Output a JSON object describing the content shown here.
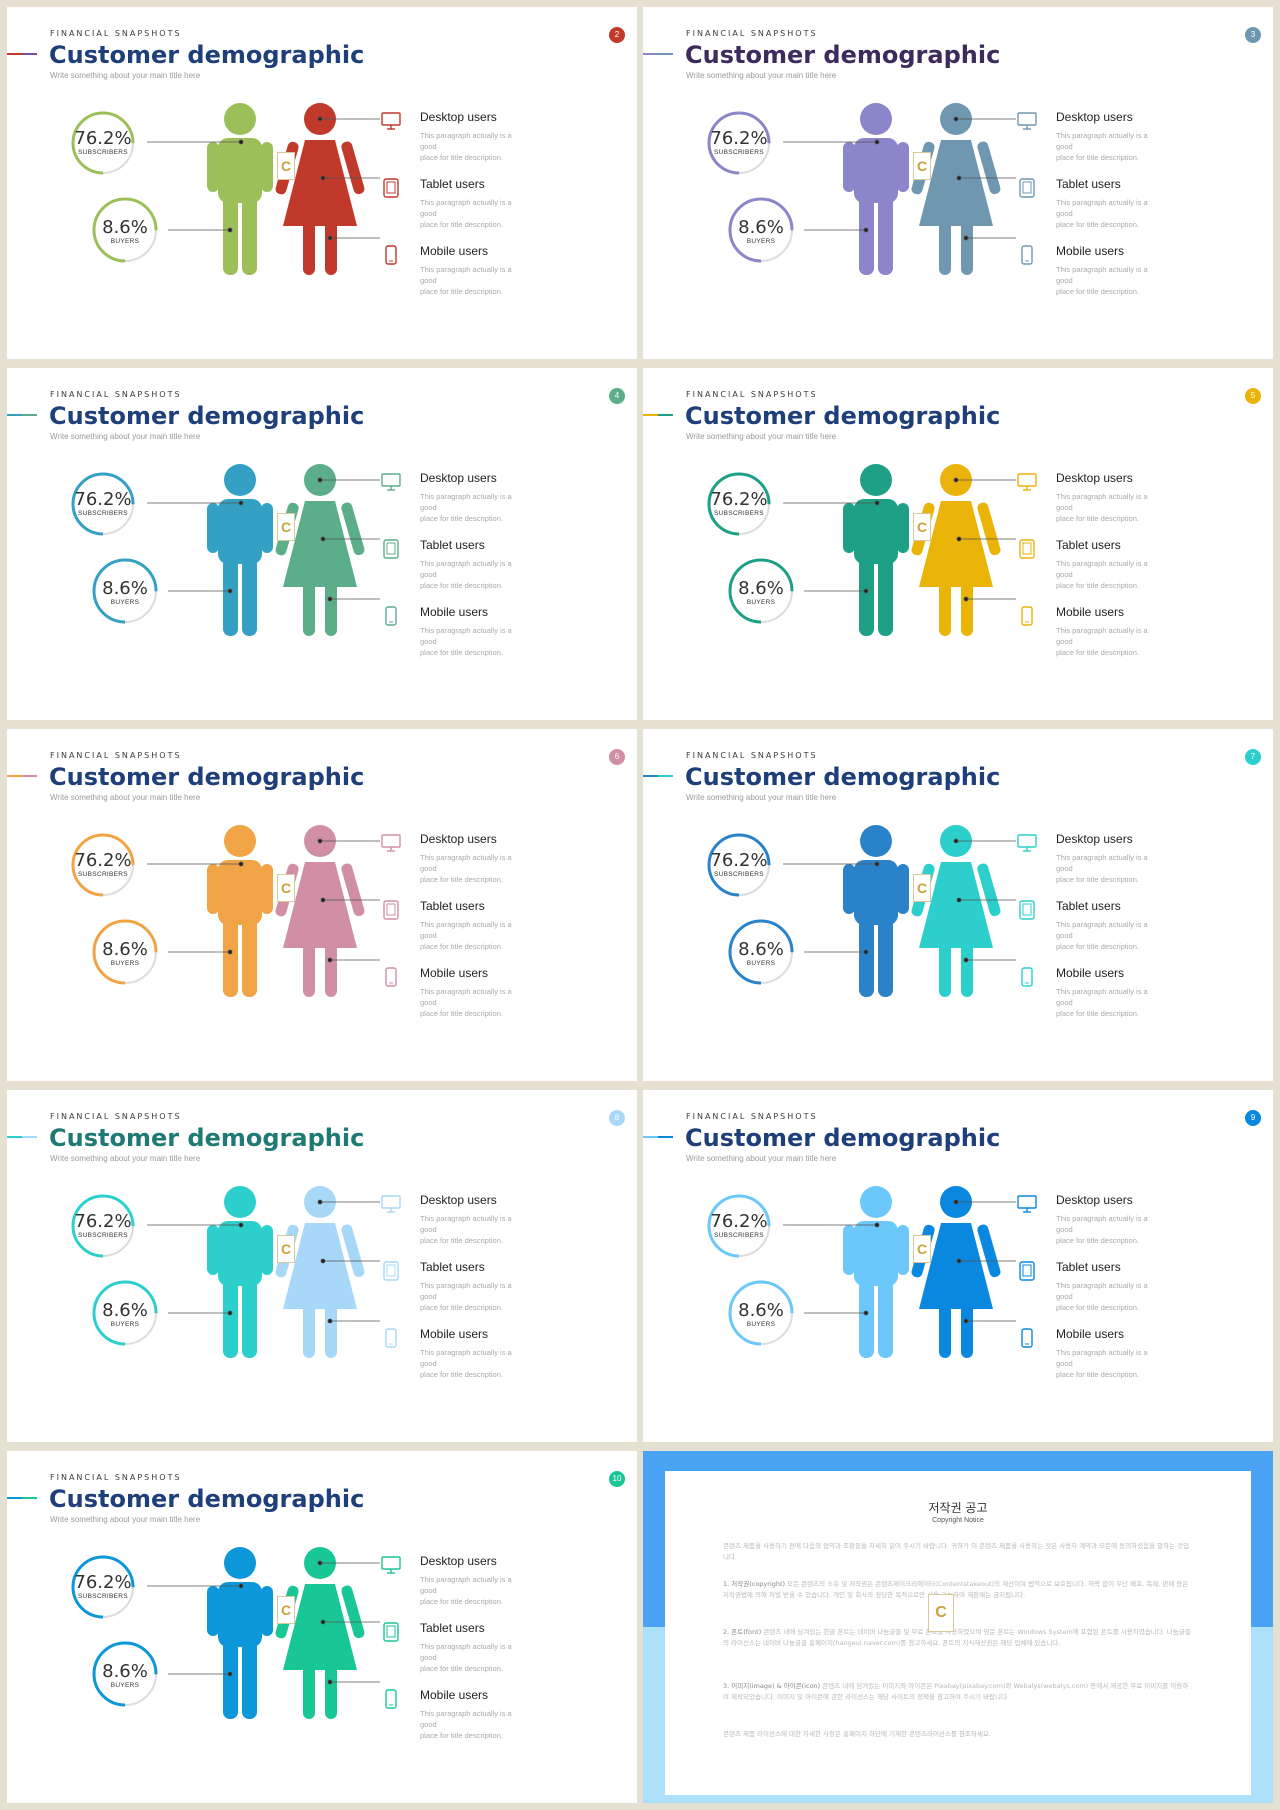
{
  "common": {
    "kicker": "FINANCIAL SNAPSHOTS",
    "title": "Customer demographic",
    "subtitle": "Write something about your main title here",
    "stat1": {
      "value": "76.2%",
      "label": "SUBSCRIBERS"
    },
    "stat2": {
      "value": "8.6%",
      "label": "BUYERS"
    },
    "items": [
      {
        "label": "Desktop users",
        "icon": "monitor-icon",
        "desc1": "This paragraph actually is a good",
        "desc2": "place for title description."
      },
      {
        "label": "Tablet users",
        "icon": "tablet-icon",
        "desc1": "This paragraph actually is a good",
        "desc2": "place for title description."
      },
      {
        "label": "Mobile users",
        "icon": "phone-icon",
        "desc1": "This paragraph actually is a good",
        "desc2": "place for title description."
      }
    ],
    "logo_letter": "C"
  },
  "slides": [
    {
      "number": "2",
      "badge": "#c0392b",
      "accent": [
        "#c0392b",
        "#7b4fa0"
      ],
      "ring": "#9cbf5a",
      "man": "#9cbf5a",
      "woman": "#c0392b",
      "icon": "#c0392b",
      "title_color": "#1f3f7a"
    },
    {
      "number": "3",
      "badge": "#6f98b0",
      "accent": [
        "#8b85c9",
        "#6f98b0"
      ],
      "ring": "#8b85c9",
      "man": "#8b85c9",
      "woman": "#6f98b0",
      "icon": "#6f98b0",
      "title_color": "#3d2b5e"
    },
    {
      "number": "4",
      "badge": "#5cad8a",
      "accent": [
        "#34a0c4",
        "#5cad8a"
      ],
      "ring": "#34a0c4",
      "man": "#34a0c4",
      "woman": "#5cad8a",
      "icon": "#5cad8a",
      "title_color": "#1f3f7a"
    },
    {
      "number": "5",
      "badge": "#eab308",
      "accent": [
        "#eab308",
        "#1ea086"
      ],
      "ring": "#1ea086",
      "man": "#1ea086",
      "woman": "#eab308",
      "icon": "#eab308",
      "title_color": "#1f3f7a"
    },
    {
      "number": "6",
      "badge": "#d08fa5",
      "accent": [
        "#f0a445",
        "#d08fa5"
      ],
      "ring": "#f0a445",
      "man": "#f0a445",
      "woman": "#d08fa5",
      "icon": "#d08fa5",
      "title_color": "#1f3f7a"
    },
    {
      "number": "7",
      "badge": "#2ccfcb",
      "accent": [
        "#2a82c9",
        "#2ccfcb"
      ],
      "ring": "#2a82c9",
      "man": "#2a82c9",
      "woman": "#2ccfcb",
      "icon": "#2ccfcb",
      "title_color": "#1f3f7a"
    },
    {
      "number": "8",
      "badge": "#a8d8f8",
      "accent": [
        "#2ccfcb",
        "#a8d8f8"
      ],
      "ring": "#2ccfcb",
      "man": "#2ccfcb",
      "woman": "#a8d8f8",
      "icon": "#a8d8f8",
      "title_color": "#1f7a74"
    },
    {
      "number": "9",
      "badge": "#0a88e0",
      "accent": [
        "#6cc7fb",
        "#0a88e0"
      ],
      "ring": "#6cc7fb",
      "man": "#6cc7fb",
      "woman": "#0a88e0",
      "icon": "#0a88e0",
      "title_color": "#1f3f7a"
    },
    {
      "number": "10",
      "badge": "#18c795",
      "accent": [
        "#0b97d8",
        "#18c795"
      ],
      "ring": "#0b97d8",
      "man": "#0b97d8",
      "woman": "#18c795",
      "icon": "#18c795",
      "title_color": "#1f3f7a"
    }
  ],
  "copyright": {
    "title": "저작권 공고",
    "subtitle": "Copyright Notice",
    "intro": "콘텐츠 제품을 사용하기 전에 다음의 협약과 조항들을 자세히 읽어 주시기 바랍니다. 귀하가 이 콘텐츠 제품을 사용하는 것은 사용자 계약과 모든에 동의하셨음을 말하는 것입니다.",
    "sections": [
      {
        "head": "1. 저작권(copyright)",
        "body": "모든 콘텐츠의 소유 및 저작권은 콘텐츠제이크리에이터(Contentstakeout)의 재산이며 법적으로 보호됩니다. 허락 없이 무단 배포, 복제, 판매 등은 저작권법에 의해 처벌 받을 수 있습니다. 개인 및 회사의 정당한 목적으로만 사용 가능하며 재판매는 금지됩니다."
      },
      {
        "head": "2. 폰트(font)",
        "body": "콘텐츠 내에 담겨있는 한글 폰트는 네이버 나눔글꼴 및 무료 폰트를 사용하였으며 영문 폰트는 Windows System에 포함된 폰트를 사용하였습니다. 나눔글꼴의 라이선스는 네이버 나눔글꼴 홈페이지(hangeul.naver.com)를 참고하세요. 폰트의 지식재산권은 해당 업체에 있습니다."
      },
      {
        "head": "3. 이미지(image) & 아이콘(icon)",
        "body": "콘텐츠 내에 담겨있는 이미지와 아이콘은 Pixabay(pixabay.com)와 Webalys(webalys.com) 등에서 제공한 무료 이미지를 이용하여 제작되었습니다. 이미지 및 아이콘에 관한 라이선스는 해당 사이트의 정책을 참고하여 주시기 바랍니다."
      }
    ],
    "outro": "콘텐츠 제품 라이선스에 대한 자세한 사항은 홈페이지 하단에 기재한 콘텐츠라이선스를 참조하세요."
  }
}
